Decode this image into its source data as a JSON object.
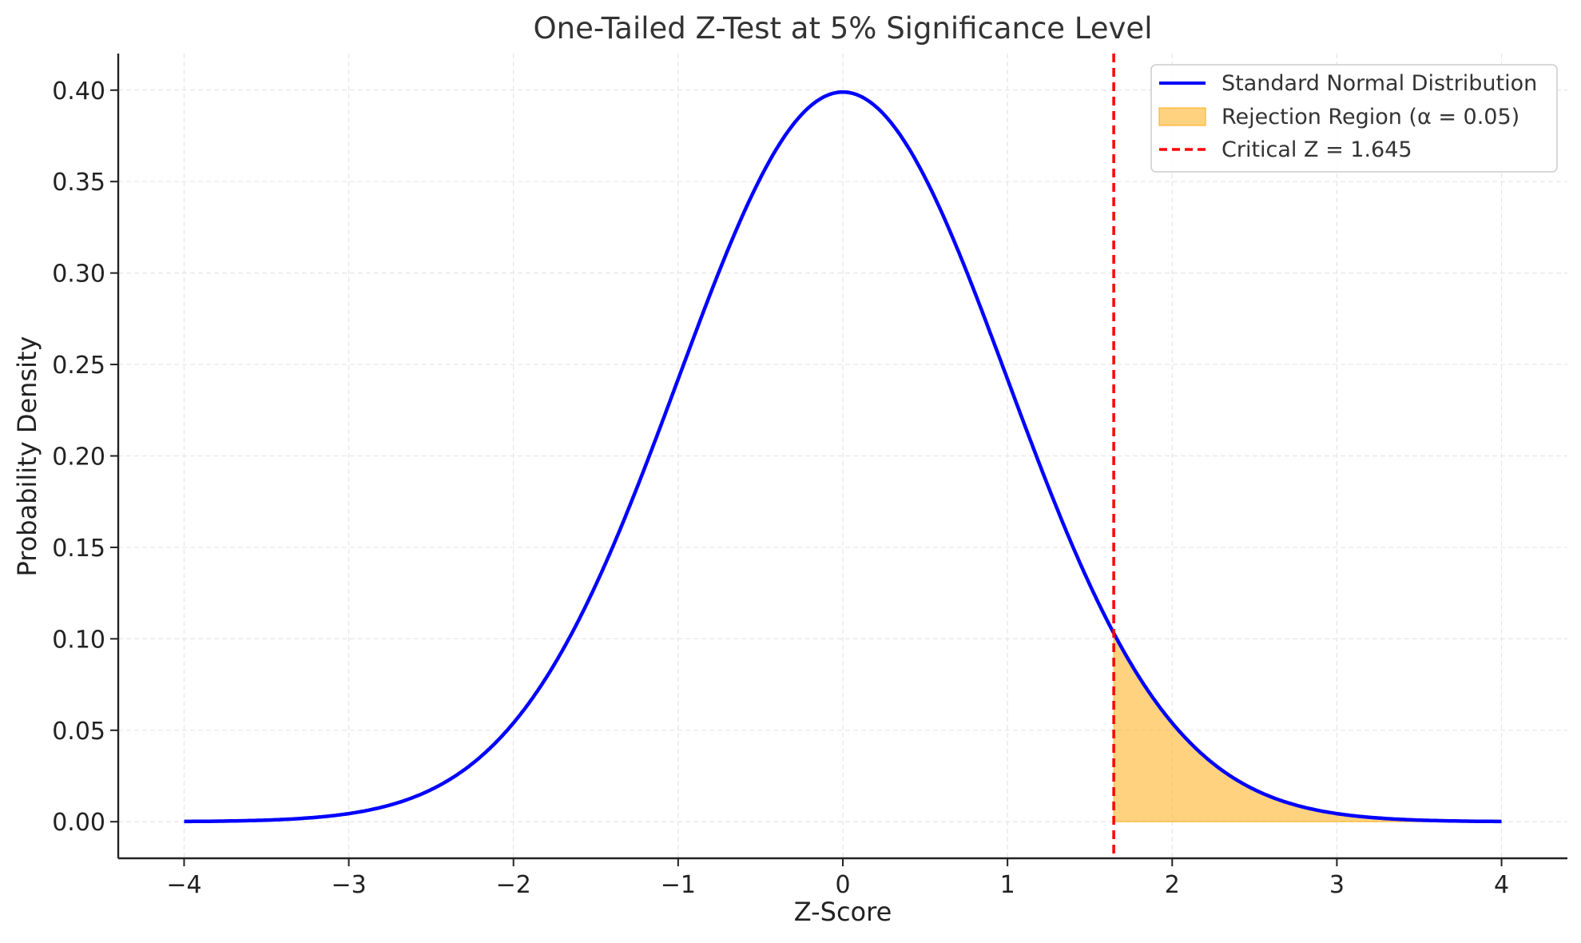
{
  "chart_data": {
    "type": "line",
    "title": "One-Tailed Z-Test at 5% Significance Level",
    "xlabel": "Z-Score",
    "ylabel": "Probability Density",
    "xlim": [
      -4.4,
      4.4
    ],
    "ylim": [
      -0.02,
      0.42
    ],
    "xticks": [
      -4,
      -3,
      -2,
      -1,
      0,
      1,
      2,
      3,
      4
    ],
    "xtick_labels": [
      "−4",
      "−3",
      "−2",
      "−1",
      "0",
      "1",
      "2",
      "3",
      "4"
    ],
    "yticks": [
      0.0,
      0.05,
      0.1,
      0.15,
      0.2,
      0.25,
      0.3,
      0.35,
      0.4
    ],
    "ytick_labels": [
      "0.00",
      "0.05",
      "0.10",
      "0.15",
      "0.20",
      "0.25",
      "0.30",
      "0.35",
      "0.40"
    ],
    "grid": true,
    "legend_position": "top-right",
    "series": [
      {
        "name": "Standard Normal Distribution",
        "kind": "line",
        "color": "#0000ff",
        "x_range": [
          -4,
          4
        ],
        "x": [
          -4,
          -3.5,
          -3,
          -2.5,
          -2,
          -1.5,
          -1,
          -0.5,
          0,
          0.5,
          1,
          1.5,
          2,
          2.5,
          3,
          3.5,
          4
        ],
        "y": [
          0.0001,
          0.0009,
          0.0044,
          0.0175,
          0.054,
          0.1295,
          0.242,
          0.3521,
          0.3989,
          0.3521,
          0.242,
          0.1295,
          0.054,
          0.0175,
          0.0044,
          0.0009,
          0.0001
        ]
      },
      {
        "name": "Rejection Region (α = 0.05)",
        "kind": "area",
        "color": "#ffa500",
        "x_range": [
          1.645,
          4
        ]
      },
      {
        "name": "Critical Z = 1.645",
        "kind": "vline",
        "color": "#ff0000",
        "x": 1.645
      }
    ]
  }
}
